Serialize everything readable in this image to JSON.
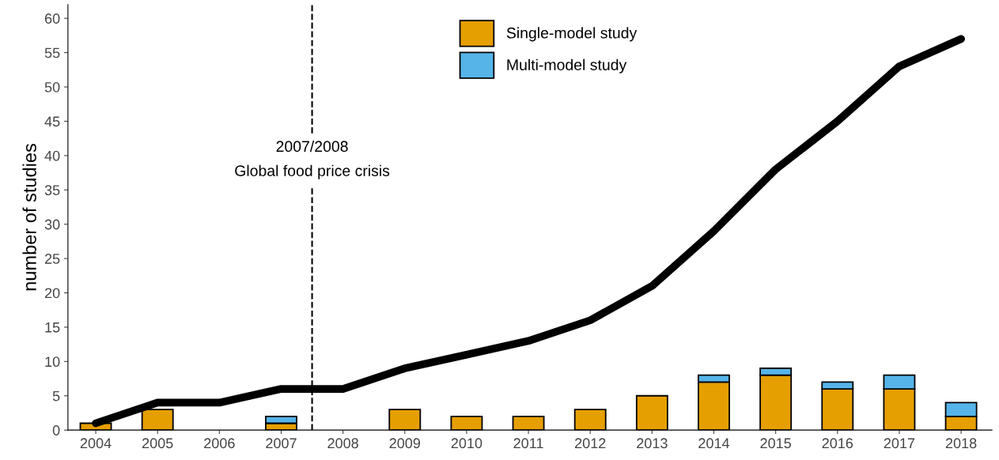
{
  "chart_data": {
    "type": "bar",
    "stacked": true,
    "ylabel": "number of studies",
    "x": [
      2004,
      2005,
      2006,
      2007,
      2008,
      2009,
      2010,
      2011,
      2012,
      2013,
      2014,
      2015,
      2016,
      2017,
      2018
    ],
    "xlim": [
      2003.55,
      2018.5
    ],
    "xticks": [
      2004,
      2005,
      2006,
      2007,
      2008,
      2009,
      2010,
      2011,
      2012,
      2013,
      2014,
      2015,
      2016,
      2017,
      2018
    ],
    "ylim": [
      0,
      62
    ],
    "yticks": [
      0,
      5,
      10,
      15,
      20,
      25,
      30,
      35,
      40,
      45,
      50,
      55,
      60
    ],
    "series": [
      {
        "name": "Single-model study",
        "color": "#e69f00",
        "values": [
          1,
          3,
          0,
          1,
          0,
          3,
          2,
          2,
          3,
          5,
          7,
          8,
          6,
          6,
          2
        ]
      },
      {
        "name": "Multi-model study",
        "color": "#56b4e9",
        "values": [
          0,
          0,
          0,
          1,
          0,
          0,
          0,
          0,
          0,
          0,
          1,
          1,
          1,
          2,
          2
        ]
      },
      {
        "type": "line",
        "color": "#000000",
        "values": [
          1,
          4,
          4,
          6,
          6,
          9,
          11,
          13,
          16,
          21,
          29,
          38,
          45,
          53,
          57
        ]
      }
    ],
    "ref_lines": [
      {
        "axis": "x",
        "value": 2007.5,
        "label": "2007/2008\nGlobal food price crisis",
        "color": "#000000",
        "line_style": "dashed"
      }
    ],
    "legend": "top",
    "grid": false
  }
}
